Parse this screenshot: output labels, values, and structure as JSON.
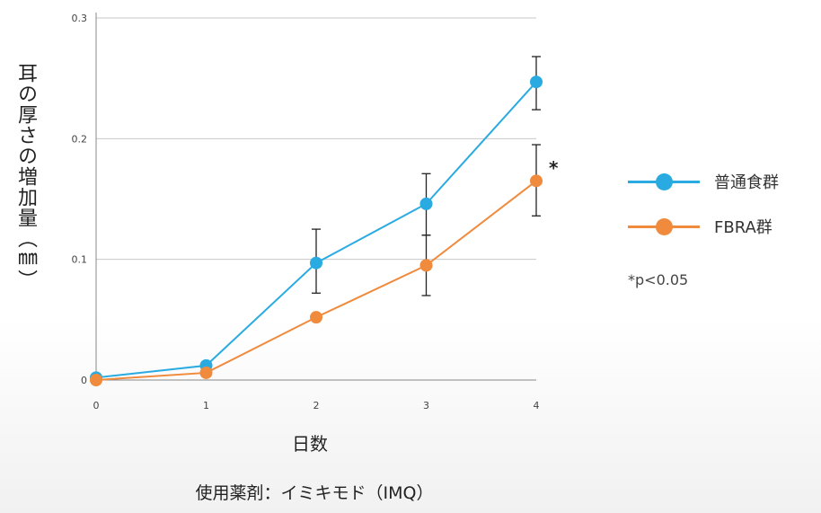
{
  "chart_data": {
    "type": "line",
    "title": "",
    "xlabel": "日数",
    "ylabel": "耳の厚さの増加量（㎜）",
    "x": [
      0,
      1,
      2,
      3,
      4
    ],
    "x_tick_labels": [
      "0",
      "1",
      "2",
      "3",
      "4"
    ],
    "y_tick_labels": [
      "0",
      "0.1",
      "0.2",
      "0.3"
    ],
    "xlim": [
      0,
      4
    ],
    "ylim": [
      0,
      0.3
    ],
    "grid": "horizontal",
    "legend_position": "right",
    "series": [
      {
        "name": "普通食群",
        "color": "#29abe2",
        "values": [
          0.002,
          0.012,
          0.097,
          0.146,
          0.247
        ],
        "error_low": [
          null,
          null,
          0.072,
          0.12,
          0.224
        ],
        "error_high": [
          null,
          null,
          0.125,
          0.171,
          0.268
        ]
      },
      {
        "name": "FBRA群",
        "color": "#f08a3c",
        "values": [
          0.0,
          0.006,
          0.052,
          0.095,
          0.165
        ],
        "error_low": [
          null,
          null,
          null,
          0.07,
          0.136
        ],
        "error_high": [
          null,
          null,
          null,
          0.12,
          0.195
        ]
      }
    ],
    "annotations": [
      {
        "text": "*",
        "x": 4,
        "y": 0.175
      }
    ]
  },
  "significance_note": "*p<0.05",
  "footnote": "使用薬剤：イミキモド（IMQ）"
}
